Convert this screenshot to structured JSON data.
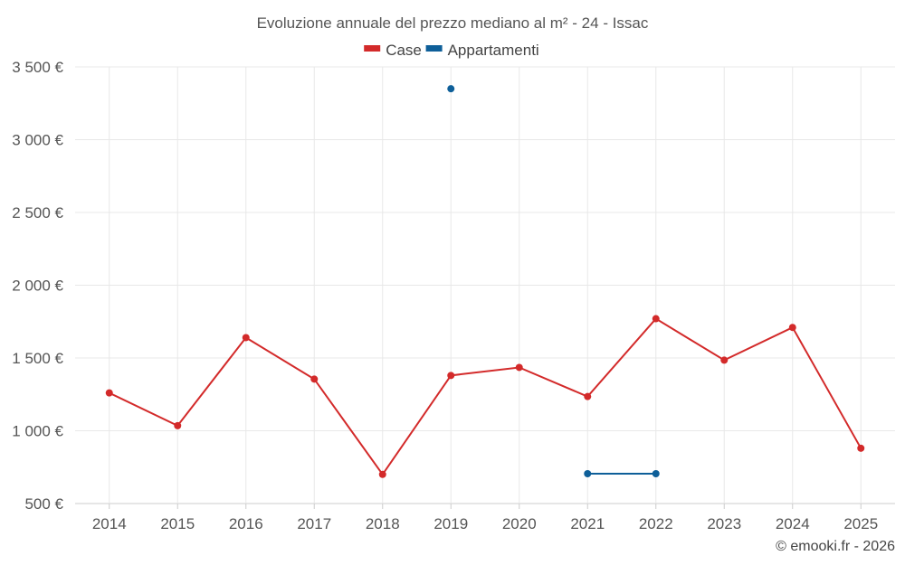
{
  "chart_data": {
    "type": "line",
    "title": "Evoluzione annuale del prezzo mediano al m² - 24 - Issac",
    "categories": [
      "2014",
      "2015",
      "2016",
      "2017",
      "2018",
      "2019",
      "2020",
      "2021",
      "2022",
      "2023",
      "2024",
      "2025"
    ],
    "ylim": [
      500,
      3500
    ],
    "yticks": [
      500,
      1000,
      1500,
      2000,
      2500,
      3000,
      3500
    ],
    "ytick_labels": [
      "500 €",
      "1 000 €",
      "1 500 €",
      "2 000 €",
      "2 500 €",
      "3 000 €",
      "3 500 €"
    ],
    "grid": true,
    "legend_position": "top-center",
    "series": [
      {
        "name": "Case",
        "color": "#d32a2a",
        "values": [
          1260,
          1035,
          1640,
          1355,
          700,
          1380,
          1435,
          1235,
          1770,
          1485,
          1710,
          880
        ]
      },
      {
        "name": "Appartamenti",
        "color": "#0e5f99",
        "values": [
          null,
          null,
          null,
          null,
          null,
          3350,
          null,
          705,
          705,
          null,
          null,
          null
        ]
      }
    ]
  },
  "credit": "© emooki.fr - 2026"
}
